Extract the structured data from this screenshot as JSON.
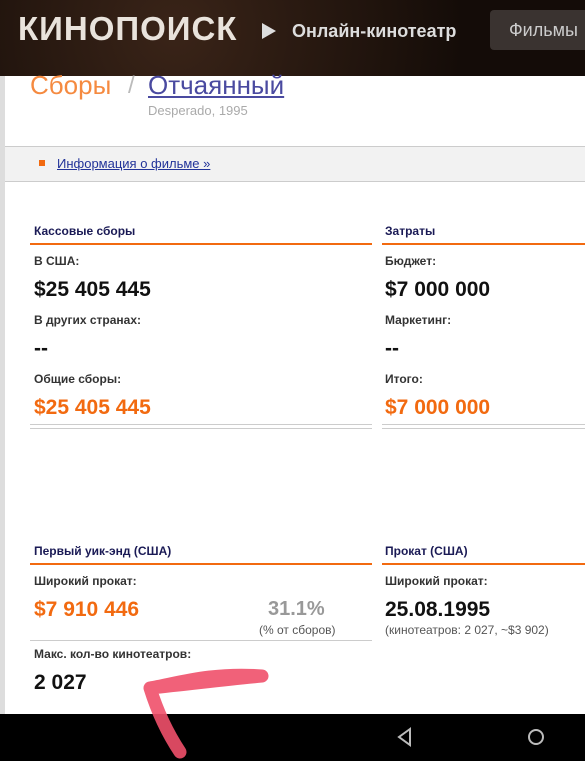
{
  "header": {
    "logo": "КИНОПОИСК",
    "nav": [
      "Онлайн-кинотеатр",
      "Фильмы"
    ]
  },
  "breadcrumb": {
    "section": "Сборы",
    "separator": "/",
    "film": "Отчаянный",
    "original": "Desperado, 1995"
  },
  "info_link": "Информация о фильме »",
  "box_office": {
    "title": "Кассовые сборы",
    "items": [
      {
        "label": "В США:",
        "value": "$25 405 445"
      },
      {
        "label": "В других странах:",
        "value": "--"
      },
      {
        "label": "Общие сборы:",
        "value": "$25 405 445"
      }
    ]
  },
  "costs": {
    "title": "Затраты",
    "items": [
      {
        "label": "Бюджет:",
        "value": "$7 000 000"
      },
      {
        "label": "Маркетинг:",
        "value": "--"
      },
      {
        "label": "Итого:",
        "value": "$7 000 000"
      }
    ]
  },
  "weekend": {
    "title": "Первый уик-энд (США)",
    "label": "Широкий прокат:",
    "value": "$7 910 446",
    "share": "31.1%",
    "share_note": "(% от сборов)",
    "theaters_label": "Макс. кол-во кинотеатров:",
    "theaters_value": "2 027"
  },
  "release": {
    "title": "Прокат (США)",
    "label": "Широкий прокат:",
    "value": "25.08.1995",
    "note": "(кинотеатров: 2 027, ~$3 902)"
  }
}
